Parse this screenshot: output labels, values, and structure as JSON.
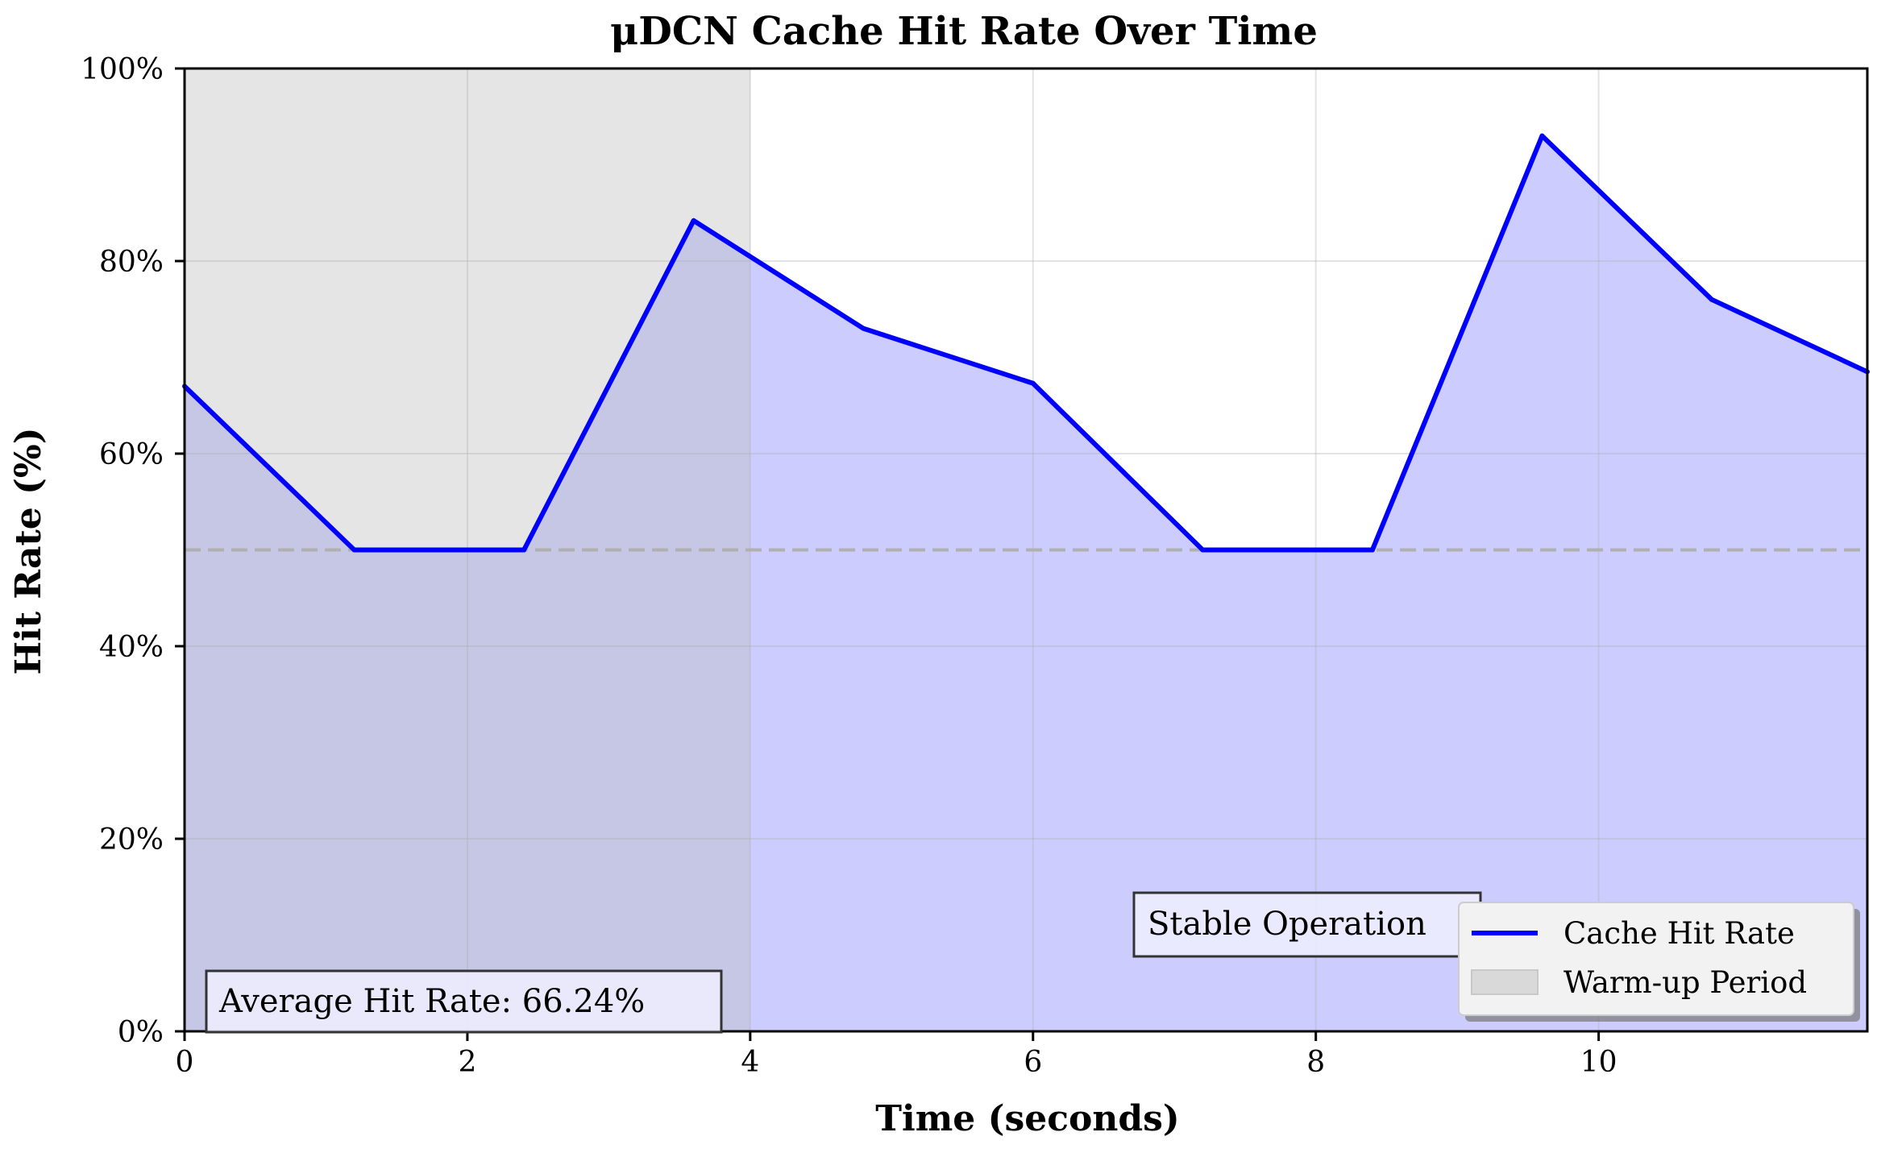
{
  "chart_data": {
    "type": "area",
    "title": "μDCN Cache Hit Rate Over Time",
    "xlabel": "Time (seconds)",
    "ylabel": "Hit Rate (%)",
    "xlim": [
      0,
      11.9
    ],
    "ylim": [
      0,
      100
    ],
    "x_ticks": [
      0,
      2,
      4,
      6,
      8,
      10
    ],
    "x_tick_labels": [
      "0",
      "2",
      "4",
      "6",
      "8",
      "10"
    ],
    "y_ticks": [
      0,
      20,
      40,
      60,
      80,
      100
    ],
    "y_tick_labels": [
      "0%",
      "20%",
      "40%",
      "60%",
      "80%",
      "100%"
    ],
    "grid": true,
    "series": [
      {
        "name": "Cache Hit Rate",
        "color": "#0000ff",
        "fill_color": "#ccccff",
        "x": [
          0,
          1.2,
          2.4,
          3.6,
          4.8,
          6.0,
          7.2,
          8.4,
          9.6,
          10.8,
          11.9
        ],
        "y": [
          67.0,
          50.0,
          50.0,
          84.2,
          73.0,
          67.3,
          50.0,
          50.0,
          93.0,
          76.0,
          68.5
        ]
      }
    ],
    "warmup_period": {
      "name": "Warm-up Period",
      "x_start": 0,
      "x_end": 4,
      "color": "#d9d9d9"
    },
    "reference_line": {
      "y": 50,
      "style": "dashed",
      "color": "#b0b0b0"
    },
    "annotations": [
      {
        "text": "Average Hit Rate: 66.24%"
      },
      {
        "text": "Stable Operation"
      }
    ],
    "legend": {
      "position": "bottom-right",
      "entries": [
        "Cache Hit Rate",
        "Warm-up Period"
      ]
    }
  }
}
